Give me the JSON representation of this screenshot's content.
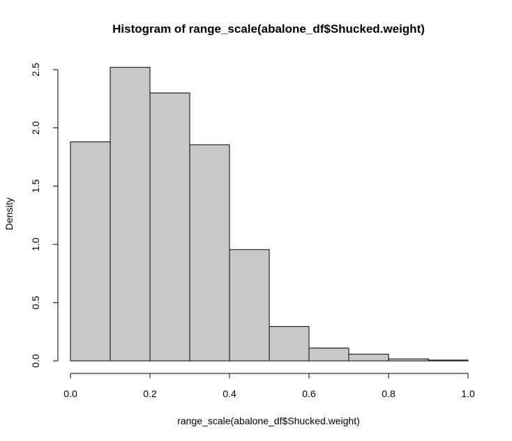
{
  "chart_data": {
    "type": "bar",
    "title": "Histogram of range_scale(abalone_df$Shucked.weight)",
    "xlabel": "range_scale(abalone_df$Shucked.weight)",
    "ylabel": "Density",
    "xlim": [
      0,
      1
    ],
    "ylim": [
      0,
      2.5
    ],
    "grid": false,
    "bin_edges": [
      0,
      0.1,
      0.2,
      0.3,
      0.4,
      0.5,
      0.6,
      0.7,
      0.8,
      0.9,
      1.0
    ],
    "values": [
      1.88,
      2.52,
      2.3,
      1.855,
      0.955,
      0.295,
      0.11,
      0.058,
      0.017,
      0.007
    ],
    "x_ticks": [
      "0.0",
      "0.2",
      "0.4",
      "0.6",
      "0.8",
      "1.0"
    ],
    "x_tick_values": [
      0,
      0.2,
      0.4,
      0.6,
      0.8,
      1.0
    ],
    "y_ticks": [
      "0.0",
      "0.5",
      "1.0",
      "1.5",
      "2.0",
      "2.5"
    ],
    "y_tick_values": [
      0,
      0.5,
      1.0,
      1.5,
      2.0,
      2.5
    ],
    "colors": {
      "bar_fill": "#c8c8c8",
      "bar_stroke": "#000000"
    }
  }
}
